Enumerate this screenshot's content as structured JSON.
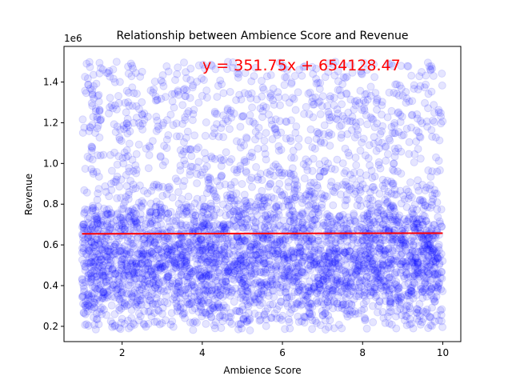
{
  "chart_data": {
    "type": "scatter",
    "title": "Relationship between Ambience Score and Revenue",
    "xlabel": "Ambience Score",
    "ylabel": "Revenue",
    "y_offset_label": "1e6",
    "xlim": [
      0.55,
      10.45
    ],
    "ylim": [
      0.125,
      1.575
    ],
    "x_ticks": [
      2,
      4,
      6,
      8,
      10
    ],
    "x_tick_labels": [
      "2",
      "4",
      "6",
      "8",
      "10"
    ],
    "y_ticks": [
      0.2,
      0.4,
      0.6,
      0.8,
      1.0,
      1.2,
      1.4
    ],
    "y_tick_labels": [
      "0.2",
      "0.4",
      "0.6",
      "0.8",
      "1.0",
      "1.2",
      "1.4"
    ],
    "grid": false,
    "scatter": {
      "x_range": [
        1.0,
        10.0
      ],
      "y_range": [
        0.18,
        1.52
      ],
      "color": "#0000ff",
      "opacity": 0.1
    },
    "fit_line": {
      "x": [
        1.0,
        10.0
      ],
      "y": [
        0.65448,
        0.65765
      ],
      "color": "#ff0000"
    },
    "equation_text": "y = 351.75x + 654128.47",
    "equation_color": "#ff0000"
  }
}
